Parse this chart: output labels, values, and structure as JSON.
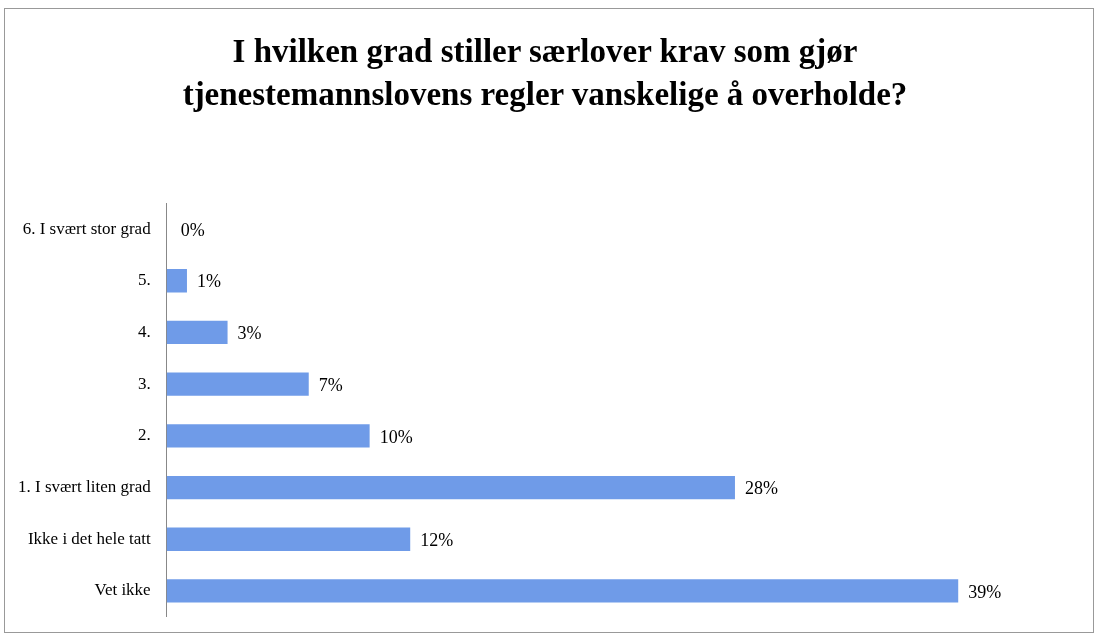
{
  "chart_data": {
    "type": "bar",
    "orientation": "horizontal",
    "title": "I hvilken grad stiller særlover krav som gjør tjenestemannslovens regler vanskelige å overholde?",
    "categories": [
      "6. I svært stor grad",
      "5.",
      "4.",
      "3.",
      "2.",
      "1. I svært liten grad",
      "Ikke i det hele tatt",
      "Vet ikke"
    ],
    "values": [
      0,
      1,
      3,
      7,
      10,
      28,
      12,
      39
    ],
    "value_labels": [
      "0%",
      "1%",
      "3%",
      "7%",
      "10%",
      "28%",
      "12%",
      "39%"
    ],
    "color": "#6f9be8",
    "grid": false,
    "legend": false
  }
}
